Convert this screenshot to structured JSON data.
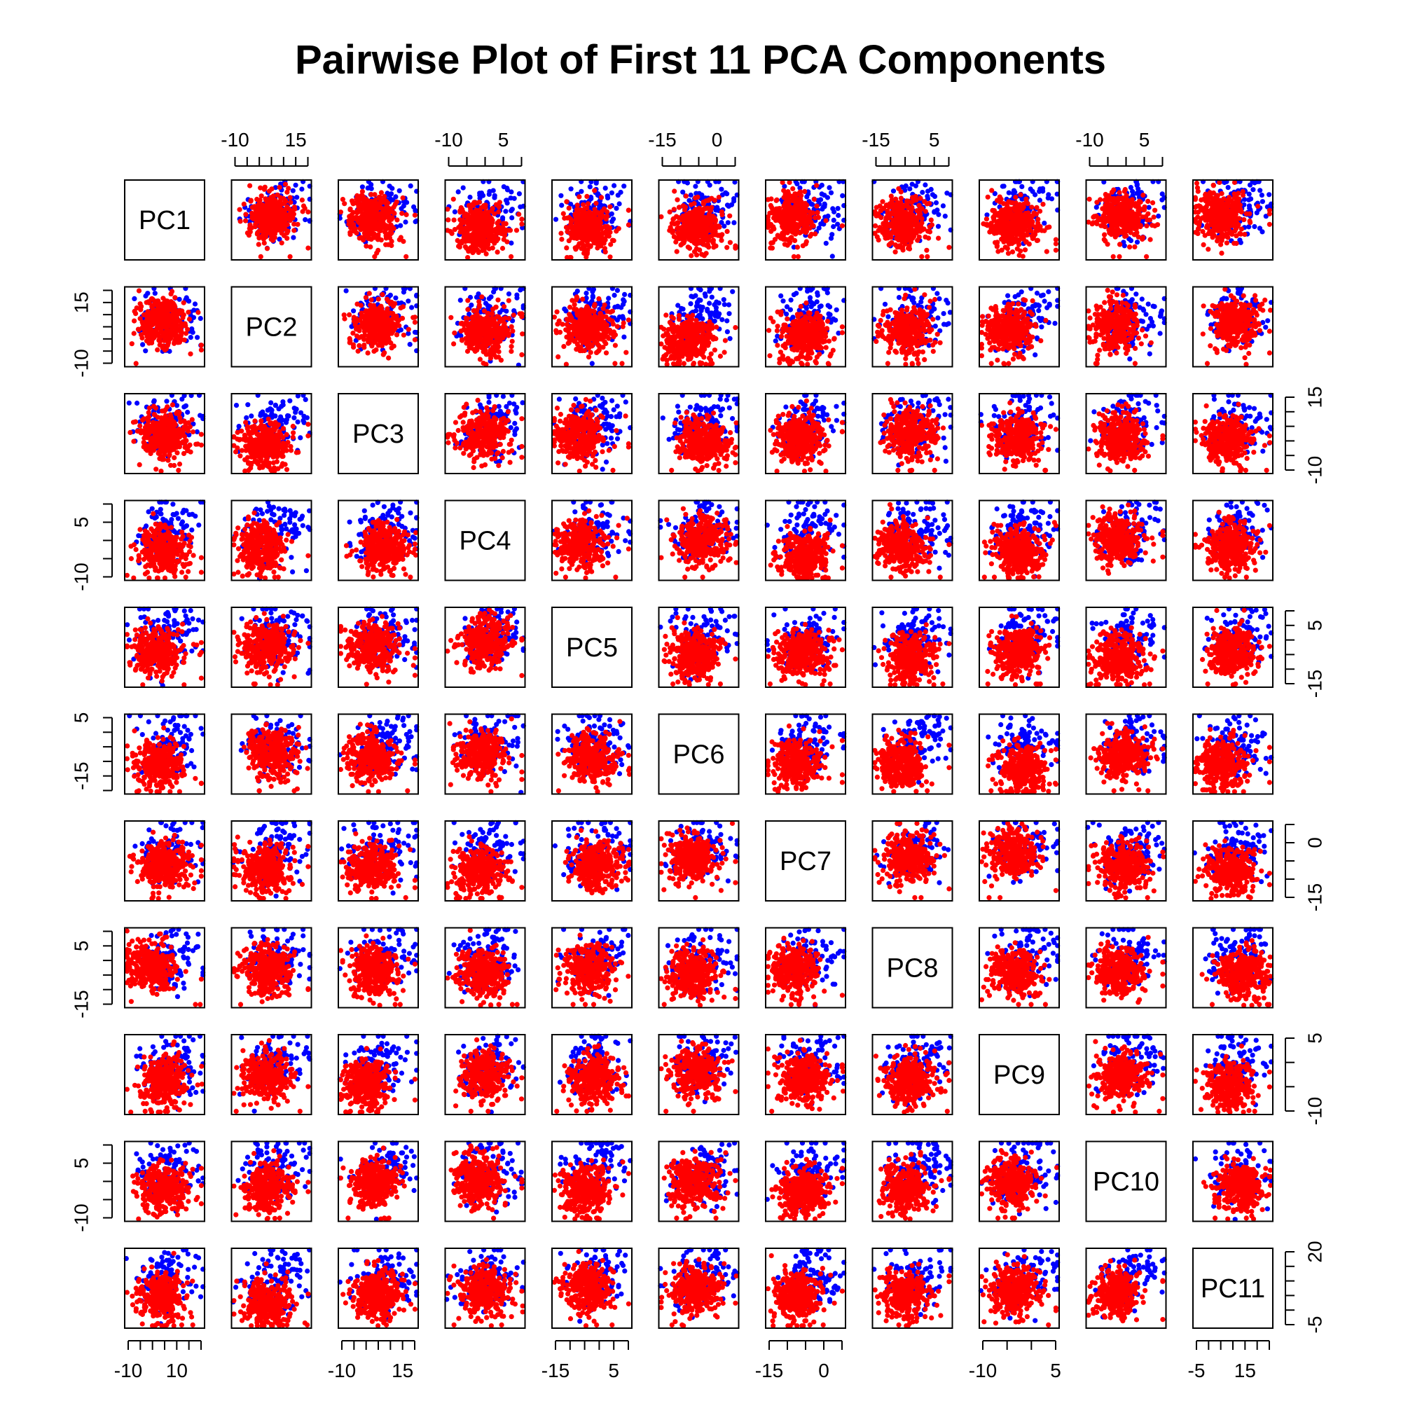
{
  "chart_data": {
    "type": "scatter",
    "title": "Pairwise Plot of First 11 PCA Components",
    "variables": [
      "PC1",
      "PC2",
      "PC3",
      "PC4",
      "PC5",
      "PC6",
      "PC7",
      "PC8",
      "PC9",
      "PC10",
      "PC11"
    ],
    "axis_ticks": [
      {
        "variable": "PC1",
        "side": "bottom",
        "labels": [
          "-10",
          "10"
        ],
        "major": [
          -10,
          10
        ],
        "minor": [
          -10,
          -5,
          0,
          5,
          10,
          15,
          20
        ]
      },
      {
        "variable": "PC2",
        "side": "top",
        "labels": [
          "-10",
          "15"
        ],
        "major": [
          -10,
          15
        ],
        "minor": [
          -10,
          -5,
          0,
          5,
          10,
          15,
          20
        ]
      },
      {
        "variable": "PC2",
        "side": "left",
        "labels": [
          "15",
          "-10"
        ],
        "major": [
          15,
          -10
        ],
        "minor": [
          -10,
          -5,
          0,
          5,
          10,
          15,
          20
        ]
      },
      {
        "variable": "PC3",
        "side": "bottom",
        "labels": [
          "-10",
          "15"
        ],
        "major": [
          -10,
          15
        ],
        "minor": [
          -10,
          -5,
          0,
          5,
          10,
          15,
          20
        ]
      },
      {
        "variable": "PC3",
        "side": "right",
        "labels": [
          "15",
          "-10"
        ],
        "major": [
          15,
          -10
        ],
        "minor": [
          -10,
          -5,
          0,
          5,
          10,
          15
        ]
      },
      {
        "variable": "PC4",
        "side": "top",
        "labels": [
          "-10",
          "5"
        ],
        "major": [
          -10,
          5
        ],
        "minor": [
          -10,
          -5,
          0,
          5,
          10
        ]
      },
      {
        "variable": "PC4",
        "side": "left",
        "labels": [
          "5",
          "-10"
        ],
        "major": [
          5,
          -10
        ],
        "minor": [
          -10,
          -5,
          0,
          5,
          10
        ]
      },
      {
        "variable": "PC5",
        "side": "bottom",
        "labels": [
          "-15",
          "5"
        ],
        "major": [
          -15,
          5
        ],
        "minor": [
          -15,
          -10,
          -5,
          0,
          5,
          10
        ]
      },
      {
        "variable": "PC5",
        "side": "right",
        "labels": [
          "5",
          "-15"
        ],
        "major": [
          5,
          -15
        ],
        "minor": [
          -15,
          -10,
          -5,
          0,
          5,
          10
        ]
      },
      {
        "variable": "PC6",
        "side": "top",
        "labels": [
          "-15",
          "0"
        ],
        "major": [
          -15,
          0
        ],
        "minor": [
          -15,
          -10,
          -5,
          0,
          5
        ]
      },
      {
        "variable": "PC6",
        "side": "left",
        "labels": [
          "5",
          "-15"
        ],
        "major": [
          5,
          -15
        ],
        "minor": [
          -20,
          -15,
          -10,
          -5,
          0,
          5
        ]
      },
      {
        "variable": "PC7",
        "side": "bottom",
        "labels": [
          "-15",
          "0"
        ],
        "major": [
          -15,
          0
        ],
        "minor": [
          -15,
          -10,
          -5,
          0,
          5
        ]
      },
      {
        "variable": "PC7",
        "side": "right",
        "labels": [
          "0",
          "-15"
        ],
        "major": [
          0,
          -15
        ],
        "minor": [
          -15,
          -10,
          -5,
          0,
          5
        ]
      },
      {
        "variable": "PC8",
        "side": "top",
        "labels": [
          "-15",
          "5"
        ],
        "major": [
          -15,
          5
        ],
        "minor": [
          -15,
          -10,
          -5,
          0,
          5,
          10
        ]
      },
      {
        "variable": "PC8",
        "side": "left",
        "labels": [
          "5",
          "-15"
        ],
        "major": [
          5,
          -15
        ],
        "minor": [
          -15,
          -10,
          -5,
          0,
          5,
          10
        ]
      },
      {
        "variable": "PC9",
        "side": "bottom",
        "labels": [
          "-10",
          "5"
        ],
        "major": [
          -10,
          5
        ],
        "minor": [
          -10,
          -5,
          0,
          5
        ]
      },
      {
        "variable": "PC9",
        "side": "right",
        "labels": [
          "5",
          "-10"
        ],
        "major": [
          5,
          -10
        ],
        "minor": [
          -10,
          -5,
          0,
          5
        ]
      },
      {
        "variable": "PC10",
        "side": "top",
        "labels": [
          "-10",
          "5"
        ],
        "major": [
          -10,
          5
        ],
        "minor": [
          -10,
          -5,
          0,
          5,
          10
        ]
      },
      {
        "variable": "PC10",
        "side": "left",
        "labels": [
          "5",
          "-10"
        ],
        "major": [
          5,
          -10
        ],
        "minor": [
          -10,
          -5,
          0,
          5,
          10
        ]
      },
      {
        "variable": "PC11",
        "side": "bottom",
        "labels": [
          "-5",
          "15"
        ],
        "major": [
          -5,
          15
        ],
        "minor": [
          -5,
          0,
          5,
          10,
          15,
          20,
          25
        ]
      },
      {
        "variable": "PC11",
        "side": "right",
        "labels": [
          "20",
          "-5"
        ],
        "major": [
          20,
          -5
        ],
        "minor": [
          -5,
          0,
          5,
          10,
          15,
          20
        ]
      }
    ],
    "series": [
      {
        "color": "#0000ff",
        "marker": "filled-circle",
        "plotted_first": true
      },
      {
        "color": "#ff0000",
        "marker": "filled-circle",
        "plotted_first": false
      }
    ],
    "grid": false,
    "legend": "none",
    "layout": "11x11 scatterplot matrix, variable names on diagonal"
  }
}
